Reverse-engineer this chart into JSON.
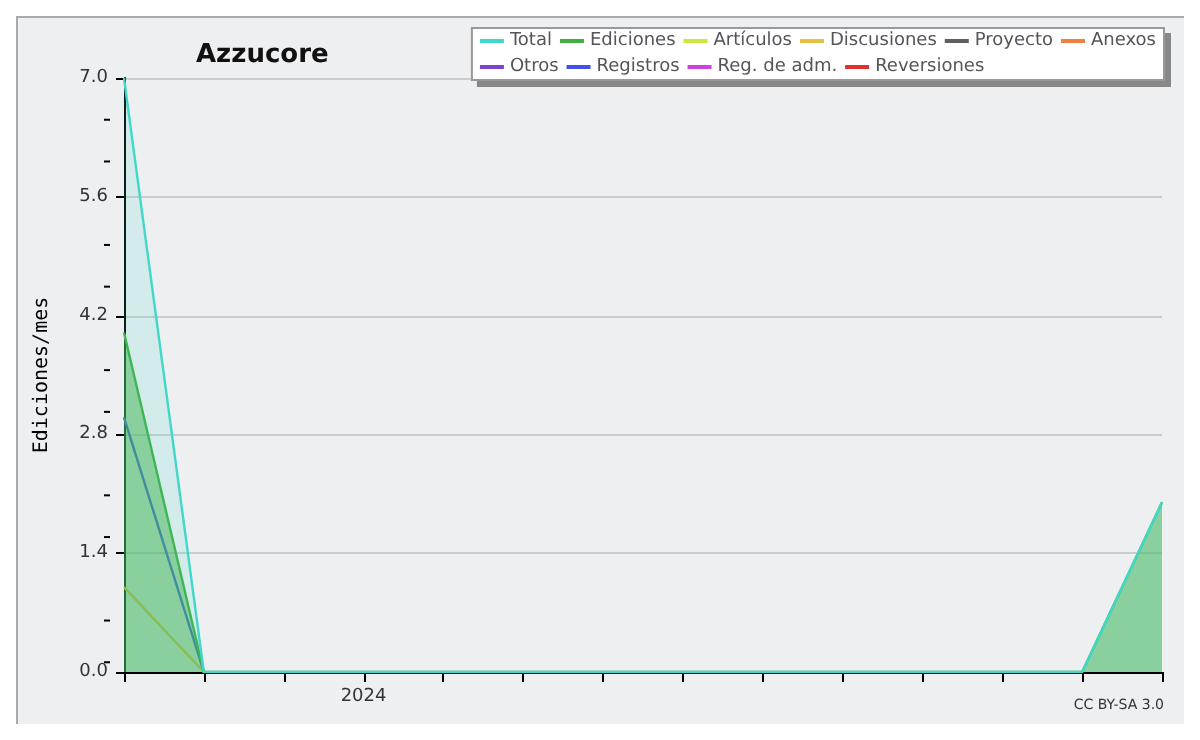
{
  "chart_data": {
    "type": "line",
    "title": "Azzucore",
    "ylabel": "Ediciones/mes",
    "annotations": [
      "CC BY-SA 3.0"
    ],
    "categories": [
      null,
      null,
      null,
      "2024",
      null,
      null,
      null,
      null,
      null,
      null,
      null,
      null,
      null,
      null
    ],
    "ylim": [
      0,
      7
    ],
    "yticks": [
      {
        "value": 0,
        "label": "0.0"
      },
      {
        "value": 1.4,
        "label": "1.4"
      },
      {
        "value": 2.8,
        "label": "2.8"
      },
      {
        "value": 4.2,
        "label": "4.2"
      },
      {
        "value": 5.6,
        "label": "5.6"
      },
      {
        "value": 7,
        "label": "7.0"
      }
    ],
    "grid": "y",
    "legend": "top right",
    "marker": "none",
    "series": [
      {
        "name": "Total",
        "type": "area",
        "color": "#40d8c8",
        "values": [
          7,
          0,
          0,
          0,
          0,
          0,
          0,
          0,
          0,
          0,
          0,
          0,
          0,
          2
        ]
      },
      {
        "name": "Ediciones",
        "type": "area",
        "color": "#40b040",
        "values": [
          4,
          0,
          0,
          0,
          0,
          0,
          0,
          0,
          0,
          0,
          0,
          0,
          0,
          2
        ]
      },
      {
        "name": "Artículos",
        "color": "#c8e840",
        "values": [
          null,
          null,
          null,
          null,
          null,
          null,
          null,
          null,
          null,
          null,
          null,
          null,
          null,
          null
        ]
      },
      {
        "name": "Discusiones",
        "color": "#e8c040",
        "values": [
          1,
          0,
          null,
          null,
          null,
          null,
          null,
          null,
          null,
          null,
          null,
          null,
          null,
          null
        ]
      },
      {
        "name": "Proyecto",
        "color": "#606060",
        "values": [
          null,
          null,
          null,
          null,
          null,
          null,
          null,
          null,
          null,
          null,
          null,
          null,
          null,
          null
        ]
      },
      {
        "name": "Anexos",
        "color": "#f08040",
        "values": [
          null,
          null,
          null,
          null,
          null,
          null,
          null,
          null,
          null,
          null,
          null,
          null,
          null,
          null
        ]
      },
      {
        "name": "Otros",
        "color": "#8040d0",
        "values": [
          null,
          null,
          null,
          null,
          null,
          null,
          null,
          null,
          null,
          null,
          null,
          null,
          null,
          null
        ]
      },
      {
        "name": "Registros",
        "color": "#4050f0",
        "values": [
          3,
          0,
          null,
          null,
          null,
          null,
          null,
          null,
          null,
          null,
          null,
          null,
          null,
          null
        ]
      },
      {
        "name": "Reg. de adm.",
        "color": "#d040e0",
        "values": [
          null,
          null,
          null,
          null,
          null,
          null,
          null,
          null,
          null,
          null,
          null,
          null,
          null,
          null
        ]
      },
      {
        "name": "Reversiones",
        "color": "#e03030",
        "values": [
          null,
          null,
          null,
          null,
          null,
          null,
          null,
          null,
          null,
          null,
          null,
          null,
          null,
          null
        ]
      }
    ]
  }
}
